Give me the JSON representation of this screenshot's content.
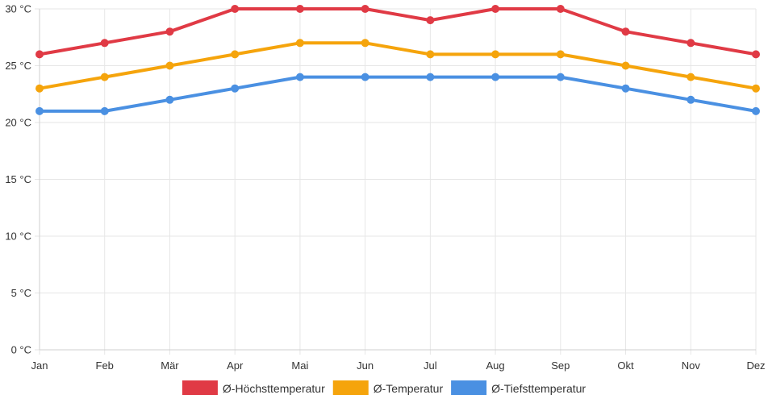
{
  "chart_data": {
    "type": "line",
    "title": "",
    "xlabel": "",
    "ylabel": "",
    "categories": [
      "Jan",
      "Feb",
      "Mär",
      "Apr",
      "Mai",
      "Jun",
      "Jul",
      "Aug",
      "Sep",
      "Okt",
      "Nov",
      "Dez"
    ],
    "ylim": [
      0,
      30
    ],
    "yticks": [
      0,
      5,
      10,
      15,
      20,
      25,
      30
    ],
    "ytick_labels": [
      "0 °C",
      "5 °C",
      "10 °C",
      "15 °C",
      "20 °C",
      "25 °C",
      "30 °C"
    ],
    "grid": true,
    "legend_position": "bottom-center",
    "series": [
      {
        "name": "Ø-Höchsttemperatur",
        "color": "#e03a45",
        "values": [
          26,
          27,
          28,
          30,
          30,
          30,
          29,
          30,
          30,
          28,
          27,
          26
        ]
      },
      {
        "name": "Ø-Temperatur",
        "color": "#f5a40c",
        "values": [
          23,
          24,
          25,
          26,
          27,
          27,
          26,
          26,
          26,
          25,
          24,
          23
        ]
      },
      {
        "name": "Ø-Tiefsttemperatur",
        "color": "#4a90e2",
        "values": [
          21,
          21,
          22,
          23,
          24,
          24,
          24,
          24,
          24,
          23,
          22,
          21
        ]
      }
    ]
  }
}
